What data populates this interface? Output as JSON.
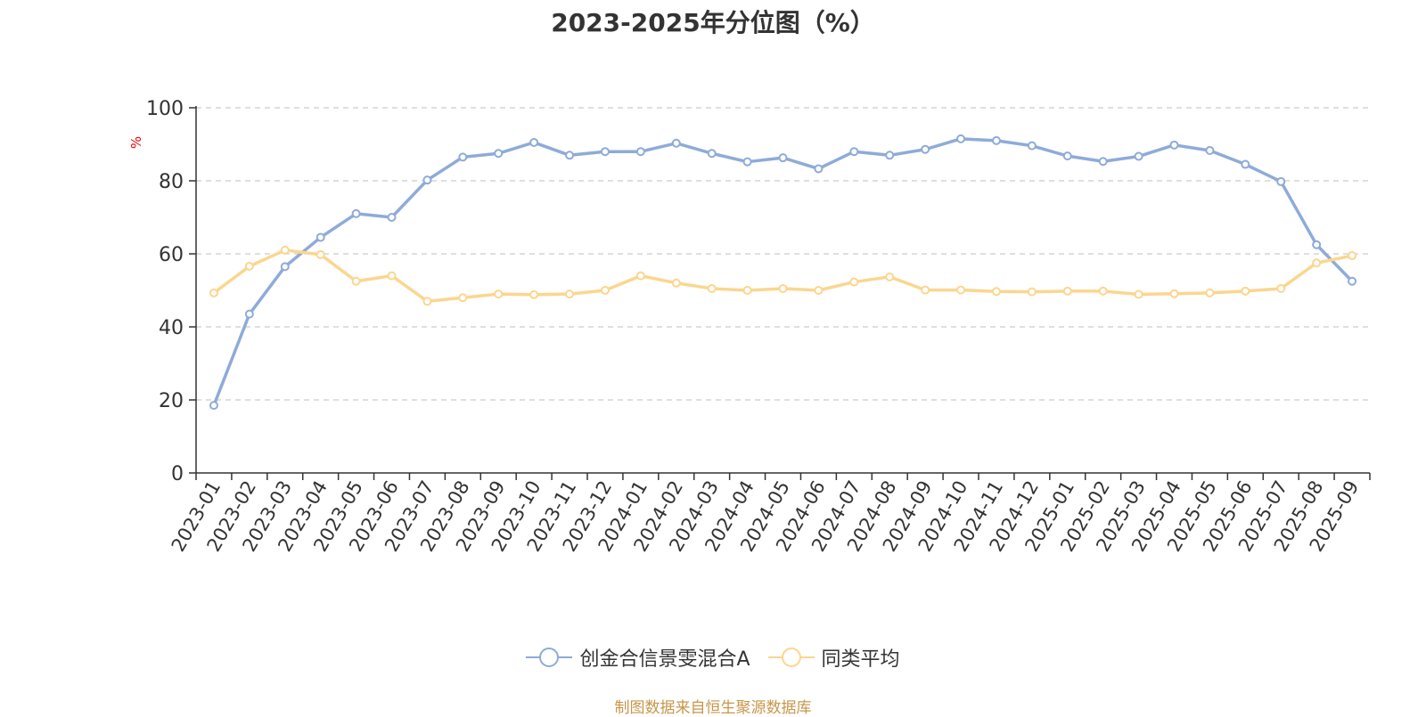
{
  "chart_data": {
    "type": "line",
    "title": "2023-2025年分位图（%）",
    "ylabel": "%",
    "ylim": [
      0,
      100
    ],
    "yticks": [
      0,
      20,
      40,
      60,
      80,
      100
    ],
    "grid": true,
    "legend_position": "bottom",
    "categories": [
      "2023-01",
      "2023-02",
      "2023-03",
      "2023-04",
      "2023-05",
      "2023-06",
      "2023-07",
      "2023-08",
      "2023-09",
      "2023-10",
      "2023-11",
      "2023-12",
      "2024-01",
      "2024-02",
      "2024-03",
      "2024-04",
      "2024-05",
      "2024-06",
      "2024-07",
      "2024-08",
      "2024-09",
      "2024-10",
      "2024-11",
      "2024-12",
      "2025-01",
      "2025-02",
      "2025-03",
      "2025-04",
      "2025-05",
      "2025-06",
      "2025-07",
      "2025-08",
      "2025-09"
    ],
    "series": [
      {
        "name": "创金合信景雯混合A",
        "color": "#8eabd8",
        "values": [
          18.5,
          43.5,
          56.5,
          64.5,
          71,
          70,
          80.2,
          86.5,
          87.5,
          90.5,
          87,
          88,
          88,
          90.3,
          87.5,
          85.2,
          86.3,
          83.3,
          88,
          87,
          88.6,
          91.5,
          91,
          89.6,
          86.8,
          85.3,
          86.7,
          89.8,
          88.3,
          84.5,
          79.8,
          62.5,
          52.5
        ]
      },
      {
        "name": "同类平均",
        "color": "#fbd68f",
        "values": [
          49.3,
          56.6,
          61,
          59.8,
          52.5,
          54,
          47,
          48,
          49,
          48.8,
          49,
          50,
          54,
          52,
          50.5,
          50,
          50.5,
          50,
          52.3,
          53.7,
          50.1,
          50.1,
          49.7,
          49.6,
          49.8,
          49.8,
          48.9,
          49.1,
          49.3,
          49.8,
          50.5,
          57.5,
          59.5
        ]
      }
    ]
  },
  "source": "制图数据来自恒生聚源数据库"
}
